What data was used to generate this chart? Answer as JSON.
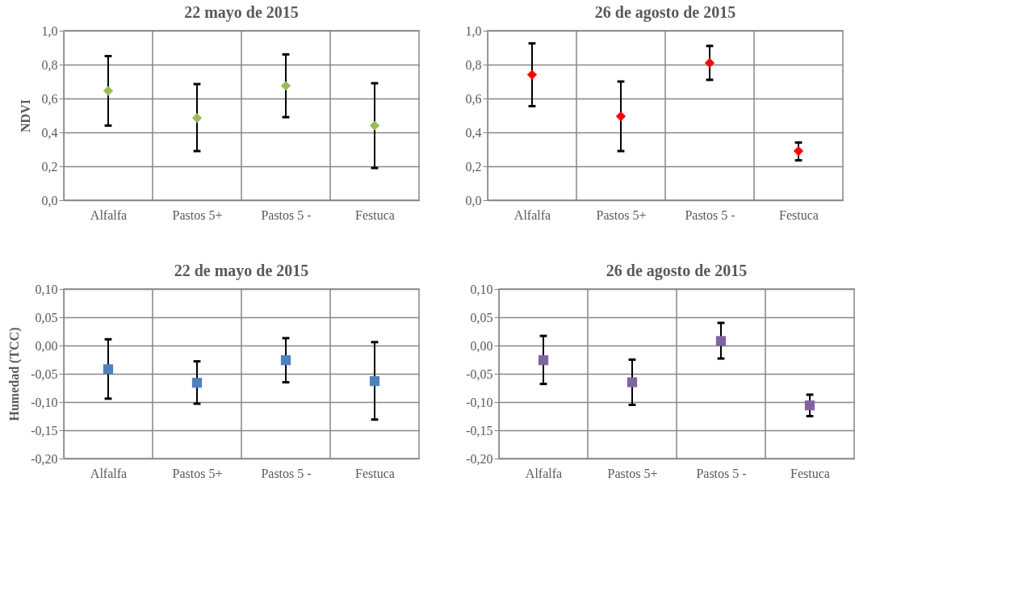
{
  "chart_data": [
    {
      "type": "scatter",
      "title": "22 mayo de 2015",
      "ylabel": "NDVI",
      "categories": [
        "Alfalfa",
        "Pastos 5+",
        "Pastos 5 -",
        "Festuca"
      ],
      "color": "#9bbb59",
      "values": [
        0.645,
        0.485,
        0.675,
        0.44
      ],
      "errors": [
        [
          0.44,
          0.85
        ],
        [
          0.29,
          0.685
        ],
        [
          0.49,
          0.86
        ],
        [
          0.19,
          0.69
        ]
      ],
      "ylim": [
        0,
        1
      ],
      "yticks": [
        {
          "value": 0,
          "label": "0,0"
        },
        {
          "value": 0.2,
          "label": "0,2"
        },
        {
          "value": 0.4,
          "label": "0,4"
        },
        {
          "value": 0.6,
          "label": "0,6"
        },
        {
          "value": 0.8,
          "label": "0,8"
        },
        {
          "value": 1,
          "label": "1,0"
        }
      ],
      "grid": true,
      "marker": "diamond"
    },
    {
      "type": "scatter",
      "title": "26 de agosto de 2015",
      "categories": [
        "Alfalfa",
        "Pastos 5+",
        "Pastos 5 -",
        "Festuca"
      ],
      "color": "#ff0000",
      "values": [
        0.74,
        0.495,
        0.81,
        0.29
      ],
      "errors": [
        [
          0.555,
          0.925
        ],
        [
          0.29,
          0.7
        ],
        [
          0.71,
          0.91
        ],
        [
          0.235,
          0.34
        ]
      ],
      "ylim": [
        0,
        1
      ],
      "yticks": [
        {
          "value": 0,
          "label": "0,0"
        },
        {
          "value": 0.2,
          "label": "0,2"
        },
        {
          "value": 0.4,
          "label": "0,4"
        },
        {
          "value": 0.6,
          "label": "0,6"
        },
        {
          "value": 0.8,
          "label": "0,8"
        },
        {
          "value": 1,
          "label": "1,0"
        }
      ],
      "grid": true,
      "marker": "diamond"
    },
    {
      "type": "scatter",
      "title": "22 de mayo de 2015",
      "ylabel": "Humedad (TCC)",
      "categories": [
        "Alfalfa",
        "Pastos 5+",
        "Pastos 5 -",
        "Festuca"
      ],
      "color": "#4f81bd",
      "values": [
        -0.042,
        -0.066,
        -0.026,
        -0.063
      ],
      "errors": [
        [
          -0.094,
          0.011
        ],
        [
          -0.103,
          -0.028
        ],
        [
          -0.065,
          0.013
        ],
        [
          -0.131,
          0.006
        ]
      ],
      "ylim": [
        -0.2,
        0.1
      ],
      "yticks": [
        {
          "value": -0.2,
          "label": "-0,20"
        },
        {
          "value": -0.15,
          "label": "-0,15"
        },
        {
          "value": -0.1,
          "label": "-0,10"
        },
        {
          "value": -0.05,
          "label": "-0,05"
        },
        {
          "value": 0,
          "label": "0,00"
        },
        {
          "value": 0.05,
          "label": "0,05"
        },
        {
          "value": 0.1,
          "label": "0,10"
        }
      ],
      "grid": true,
      "marker": "square"
    },
    {
      "type": "scatter",
      "title": "26 de agosto de 2015",
      "categories": [
        "Alfalfa",
        "Pastos 5+",
        "Pastos 5 -",
        "Festuca"
      ],
      "color": "#8064a2",
      "values": [
        -0.026,
        -0.065,
        0.008,
        -0.106
      ],
      "errors": [
        [
          -0.068,
          0.017
        ],
        [
          -0.105,
          -0.025
        ],
        [
          -0.023,
          0.04
        ],
        [
          -0.125,
          -0.087
        ]
      ],
      "ylim": [
        -0.2,
        0.1
      ],
      "yticks": [
        {
          "value": -0.2,
          "label": "-0,20"
        },
        {
          "value": -0.15,
          "label": "-0,15"
        },
        {
          "value": -0.1,
          "label": "-0,10"
        },
        {
          "value": -0.05,
          "label": "-0,05"
        },
        {
          "value": 0,
          "label": "0,00"
        },
        {
          "value": 0.05,
          "label": "0,05"
        },
        {
          "value": 0.1,
          "label": "0,10"
        }
      ],
      "grid": true,
      "marker": "square"
    }
  ]
}
